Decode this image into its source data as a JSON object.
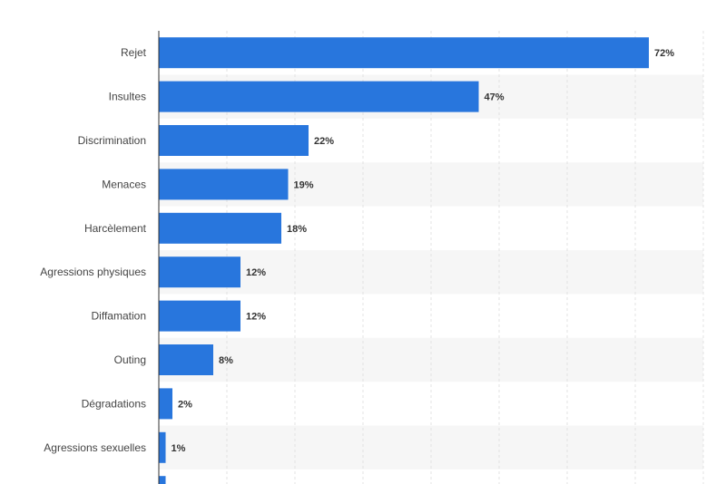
{
  "chart_data": {
    "type": "bar",
    "orientation": "horizontal",
    "title": "",
    "xlabel": "",
    "ylabel": "",
    "xlim": [
      0,
      80
    ],
    "categories": [
      "Rejet",
      "Insultes",
      "Discrimination",
      "Menaces",
      "Harcèlement",
      "Agressions physiques",
      "Diffamation",
      "Outing",
      "Dégradations",
      "Agressions sexuelles"
    ],
    "values": [
      72,
      47,
      22,
      19,
      18,
      12,
      12,
      8,
      2,
      1
    ],
    "value_labels": [
      "72%",
      "47%",
      "22%",
      "19%",
      "18%",
      "12%",
      "12%",
      "8%",
      "2%",
      "1%"
    ],
    "partial_last_bar_value": 1,
    "grid": true,
    "bar_color": "#2876dd",
    "stripe_color": "#f6f6f6",
    "grid_color": "#e3e3e3",
    "axis_color": "#333333"
  }
}
